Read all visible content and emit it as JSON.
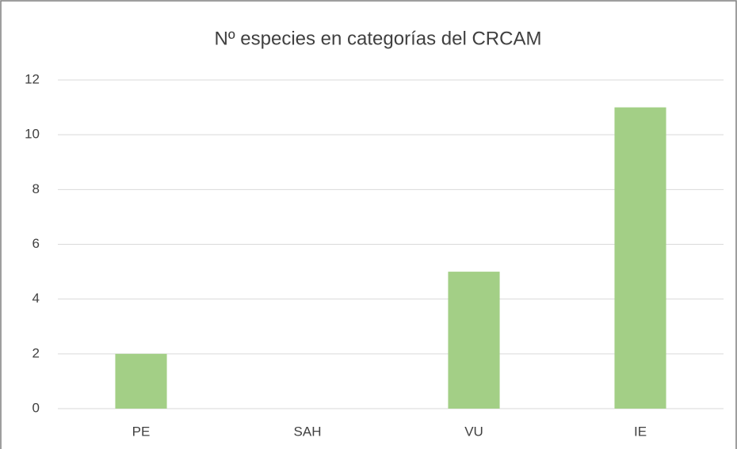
{
  "chart_data": {
    "type": "bar",
    "title": "Nº especies en categorías del CRCAM",
    "categories": [
      "PE",
      "SAH",
      "VU",
      "IE"
    ],
    "values": [
      2,
      0,
      5,
      11
    ],
    "color": "#a3cf86",
    "ylim": [
      0,
      12
    ],
    "yticks": [
      0,
      2,
      4,
      6,
      8,
      10,
      12
    ],
    "grid": true
  }
}
